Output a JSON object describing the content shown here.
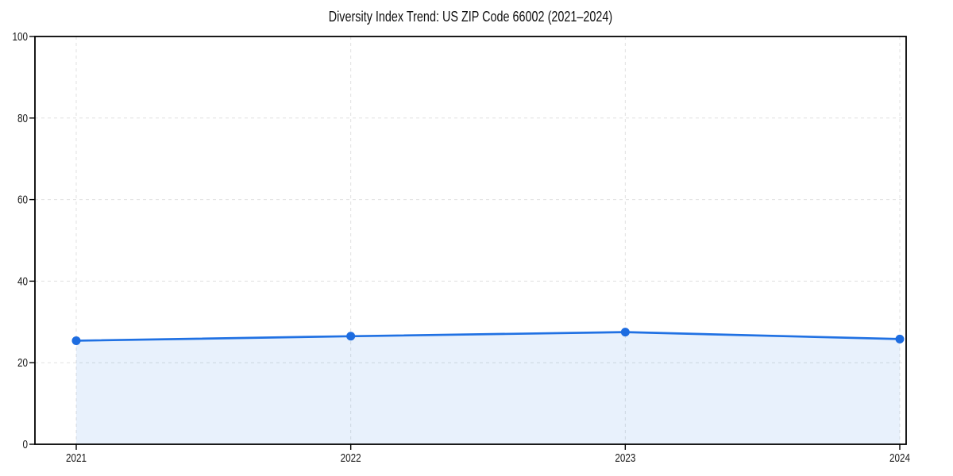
{
  "chart_data": {
    "type": "line",
    "title": "Diversity Index Trend: US ZIP Code 66002 (2021–2024)",
    "categories": [
      "2021",
      "2022",
      "2023",
      "2024"
    ],
    "series": [
      {
        "name": "Diversity Index",
        "values": [
          25.4,
          26.5,
          27.5,
          25.8
        ]
      }
    ],
    "xlabel": "",
    "ylabel": "",
    "ylim": [
      0,
      100
    ],
    "yticks": [
      0,
      20,
      40,
      60,
      80,
      100
    ],
    "grid": "dashed-both-axes",
    "legend_position": "none",
    "area_fill_under_line": true,
    "marker_style": "filled-circle",
    "colors": {
      "line": "#2071e3",
      "marker": "#1d6ce0",
      "area_fill": "rgba(32,113,227,0.10)",
      "grid": "#e0e0e0",
      "axis": "#000000",
      "tick_text": "#191919",
      "title_text": "#111111",
      "background": "#ffffff"
    }
  }
}
